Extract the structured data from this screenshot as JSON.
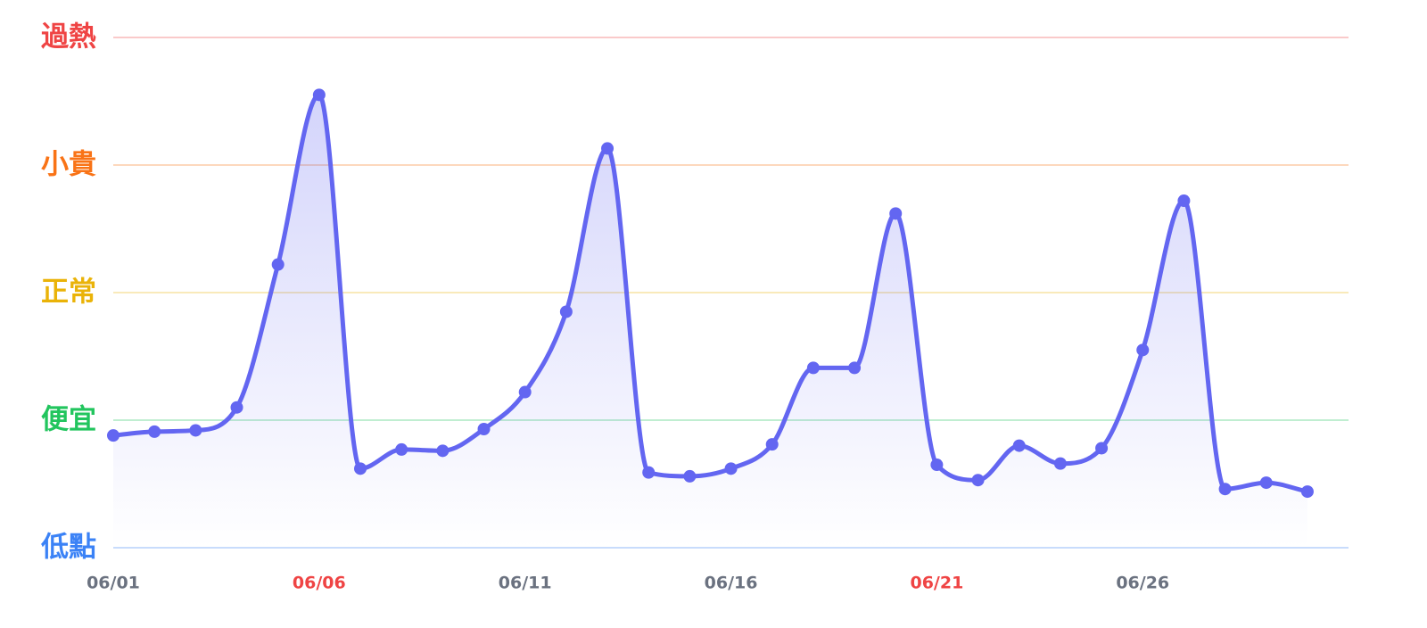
{
  "chart_data": {
    "type": "line",
    "categories": [
      "06/01",
      null,
      null,
      null,
      null,
      "06/06",
      null,
      null,
      null,
      null,
      "06/11",
      null,
      null,
      null,
      null,
      "06/16",
      null,
      null,
      null,
      null,
      "06/21",
      null,
      null,
      null,
      null,
      "06/26",
      null,
      null,
      null,
      null
    ],
    "category_colors": [
      "#6b7280",
      null,
      null,
      null,
      null,
      "#ef4444",
      null,
      null,
      null,
      null,
      "#6b7280",
      null,
      null,
      null,
      null,
      "#6b7280",
      null,
      null,
      null,
      null,
      "#ef4444",
      null,
      null,
      null,
      null,
      "#6b7280",
      null,
      null,
      null,
      null
    ],
    "series": [
      {
        "color": "#6366f1",
        "values": [
          0.88,
          0.91,
          0.92,
          1.1,
          2.22,
          3.55,
          0.62,
          0.77,
          0.76,
          0.93,
          1.22,
          1.85,
          3.13,
          0.59,
          0.56,
          0.62,
          0.81,
          1.41,
          1.41,
          2.62,
          0.65,
          0.53,
          0.8,
          0.66,
          0.78,
          1.55,
          2.72,
          0.46,
          0.51,
          0.44
        ]
      }
    ],
    "ylim": [
      0,
      4
    ],
    "yticks": [
      {
        "value": 0,
        "label": "低點"
      },
      {
        "value": 1,
        "label": "便宜"
      },
      {
        "value": 2,
        "label": "正常"
      },
      {
        "value": 3,
        "label": "小貴"
      },
      {
        "value": 4,
        "label": "過熱"
      }
    ],
    "ytick_colors": [
      "#3b82f6",
      "#22c55e",
      "#eab308",
      "#f97316",
      "#ef4444"
    ],
    "grid": true
  }
}
